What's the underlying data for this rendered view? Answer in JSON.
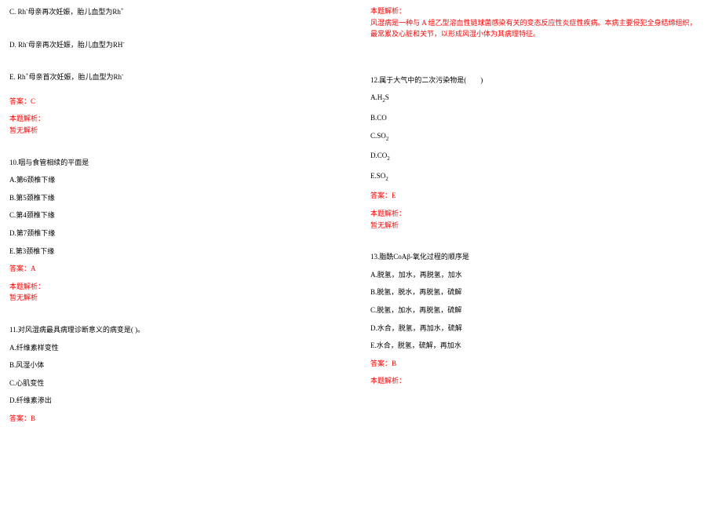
{
  "colors": {
    "text": "#000000",
    "accent": "#ff0000",
    "background": "#ffffff"
  },
  "typography": {
    "font_family": "SimSun",
    "font_size_pt": 9
  },
  "left": {
    "q9": {
      "optC_prefix": "C.",
      "optC_html": "Rh⁻母亲再次妊娠，胎儿血型为Rh⁺",
      "optD_prefix": "D.",
      "optD_html": "Rh⁻母亲再次妊娠，胎儿血型为RH⁻",
      "optE_prefix": "E.",
      "optE_html": "Rh⁺母亲首次妊娠，胎儿血型为Rh⁻",
      "answer": "答案：C",
      "analysis_label": "本题解析：",
      "analysis_text": "暂无解析"
    },
    "q10": {
      "stem": "10.咽与食管相续的平面是",
      "optA": "A.第6颈椎下缘",
      "optB": "B.第5颈椎下缘",
      "optC": "C.第4颈椎下缘",
      "optD": "D.第7颈椎下缘",
      "optE": "E.第3颈椎下缘",
      "answer": "答案：A",
      "analysis_label": "本题解析：",
      "analysis_text": "暂无解析"
    },
    "q11": {
      "stem": "11.对风湿病最具病理诊断意义的病变是( )。",
      "optA": "A.纤维素样变性",
      "optB": "B.风湿小体",
      "optC": "C.心肌变性",
      "optD": "D.纤维素渗出",
      "answer": "答案：B"
    }
  },
  "right": {
    "q11cont": {
      "analysis_label": "本题解析：",
      "analysis_line1": "风湿病是一种与 A 组乙型溶血性链球菌感染有关的变态反应性炎症性疾病。本病主要侵犯全身结缔组织，",
      "analysis_line2": "最常累及心脏和关节，以形成风湿小体为其病理特征。"
    },
    "q12": {
      "stem": "12.属于大气中的二次污染物是(　　)",
      "optA": "A.H₂S",
      "optB": "B.CO",
      "optC": "C.SO₂",
      "optD": "D.CO₂",
      "optE": "E.SO₂",
      "answer": "答案：E",
      "analysis_label": "本题解析：",
      "analysis_text": "暂无解析"
    },
    "q13": {
      "stem": "13.脂酰CoAβ-氧化过程的顺序是",
      "optA": "A.脱氢，加水，再脱氢，加水",
      "optB": "B.脱氢，脱水，再脱氢，硫解",
      "optC": "C.脱氢，加水，再脱氢，硫解",
      "optD": "D.水合，脱氢，再加水，硫解",
      "optE": "E.水合，脱氢，硫解，再加水",
      "answer": "答案：B",
      "analysis_label": "本题解析："
    }
  }
}
